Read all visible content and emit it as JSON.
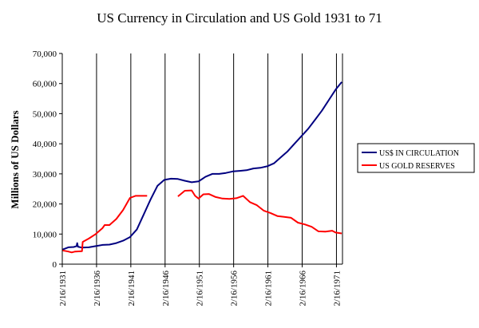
{
  "chart_data": {
    "type": "line",
    "title": "US Currency in Circulation and US Gold 1931 to 71",
    "xlabel": "",
    "ylabel": "Millions of US Dollars",
    "ylim": [
      0,
      70000
    ],
    "xlim": [
      1931.12,
      1972.0
    ],
    "yticks": [
      {
        "value": 0,
        "label": "0"
      },
      {
        "value": 10000,
        "label": "10,000"
      },
      {
        "value": 20000,
        "label": "20,000"
      },
      {
        "value": 30000,
        "label": "30,000"
      },
      {
        "value": 40000,
        "label": "40,000"
      },
      {
        "value": 50000,
        "label": "50,000"
      },
      {
        "value": 60000,
        "label": "60,000"
      },
      {
        "value": 70000,
        "label": "70,000"
      }
    ],
    "xticks": [
      {
        "value": 1931.12,
        "label": "2/16/1931"
      },
      {
        "value": 1936.12,
        "label": "2/16/1936"
      },
      {
        "value": 1941.12,
        "label": "2/16/1941"
      },
      {
        "value": 1946.12,
        "label": "2/16/1946"
      },
      {
        "value": 1951.12,
        "label": "2/16/1951"
      },
      {
        "value": 1956.12,
        "label": "2/16/1956"
      },
      {
        "value": 1961.12,
        "label": "2/16/1961"
      },
      {
        "value": 1966.12,
        "label": "2/16/1966"
      },
      {
        "value": 1971.12,
        "label": "2/16/1971"
      }
    ],
    "grid": "vertical",
    "legend_position": "right",
    "colors": {
      "currency": "#000080",
      "gold": "#ff0000",
      "grid": "#000000",
      "axis": "#000000"
    },
    "series": [
      {
        "name": "US$ IN CIRCULATION",
        "color": "#000080",
        "points": [
          [
            1931.1,
            4800
          ],
          [
            1932.0,
            5600
          ],
          [
            1932.8,
            5700
          ],
          [
            1933.2,
            6000
          ],
          [
            1933.3,
            7000
          ],
          [
            1933.4,
            5800
          ],
          [
            1934.0,
            5500
          ],
          [
            1935.0,
            5600
          ],
          [
            1936.0,
            6000
          ],
          [
            1937.0,
            6400
          ],
          [
            1938.0,
            6500
          ],
          [
            1939.0,
            7000
          ],
          [
            1940.0,
            7800
          ],
          [
            1941.0,
            9000
          ],
          [
            1942.0,
            11500
          ],
          [
            1943.0,
            16500
          ],
          [
            1944.0,
            21500
          ],
          [
            1945.0,
            26000
          ],
          [
            1946.0,
            28000
          ],
          [
            1947.0,
            28400
          ],
          [
            1948.0,
            28300
          ],
          [
            1949.0,
            27700
          ],
          [
            1950.0,
            27200
          ],
          [
            1951.0,
            27500
          ],
          [
            1952.0,
            29000
          ],
          [
            1953.0,
            30000
          ],
          [
            1954.0,
            30000
          ],
          [
            1955.0,
            30300
          ],
          [
            1956.0,
            30800
          ],
          [
            1957.0,
            31000
          ],
          [
            1958.0,
            31200
          ],
          [
            1959.0,
            31800
          ],
          [
            1960.0,
            32000
          ],
          [
            1961.0,
            32500
          ],
          [
            1962.0,
            33500
          ],
          [
            1963.0,
            35500
          ],
          [
            1964.0,
            37500
          ],
          [
            1965.0,
            40000
          ],
          [
            1966.0,
            42500
          ],
          [
            1967.0,
            45000
          ],
          [
            1968.0,
            48000
          ],
          [
            1969.0,
            51000
          ],
          [
            1970.0,
            54500
          ],
          [
            1971.0,
            58000
          ],
          [
            1971.9,
            60500
          ]
        ]
      },
      {
        "name": "US GOLD RESERVES",
        "color": "#ff0000",
        "segments": [
          [
            [
              1931.1,
              4600
            ],
            [
              1932.0,
              4200
            ],
            [
              1932.5,
              3900
            ],
            [
              1933.0,
              4200
            ],
            [
              1934.0,
              4300
            ],
            [
              1934.1,
              7400
            ],
            [
              1935.0,
              8500
            ],
            [
              1936.0,
              10000
            ],
            [
              1937.0,
              12000
            ],
            [
              1937.3,
              13000
            ],
            [
              1938.0,
              13000
            ],
            [
              1939.0,
              15000
            ],
            [
              1940.0,
              18000
            ],
            [
              1941.0,
              22000
            ],
            [
              1941.8,
              22700
            ],
            [
              1942.5,
              22700
            ],
            [
              1943.5,
              22700
            ]
          ],
          [
            [
              1948.0,
              22500
            ],
            [
              1949.0,
              24400
            ],
            [
              1950.0,
              24500
            ],
            [
              1950.5,
              22700
            ],
            [
              1951.0,
              21800
            ],
            [
              1951.7,
              23200
            ],
            [
              1952.5,
              23300
            ],
            [
              1953.5,
              22300
            ],
            [
              1954.5,
              21800
            ],
            [
              1955.5,
              21700
            ],
            [
              1956.5,
              21900
            ],
            [
              1957.5,
              22700
            ],
            [
              1958.5,
              20600
            ],
            [
              1959.5,
              19600
            ],
            [
              1960.5,
              17800
            ],
            [
              1961.5,
              17000
            ],
            [
              1962.5,
              16000
            ],
            [
              1963.5,
              15700
            ],
            [
              1964.5,
              15400
            ],
            [
              1965.5,
              13800
            ],
            [
              1966.5,
              13200
            ],
            [
              1967.5,
              12400
            ],
            [
              1968.5,
              10900
            ],
            [
              1969.5,
              10800
            ],
            [
              1970.5,
              11100
            ],
            [
              1971.0,
              10500
            ],
            [
              1971.9,
              10200
            ]
          ]
        ]
      }
    ]
  }
}
